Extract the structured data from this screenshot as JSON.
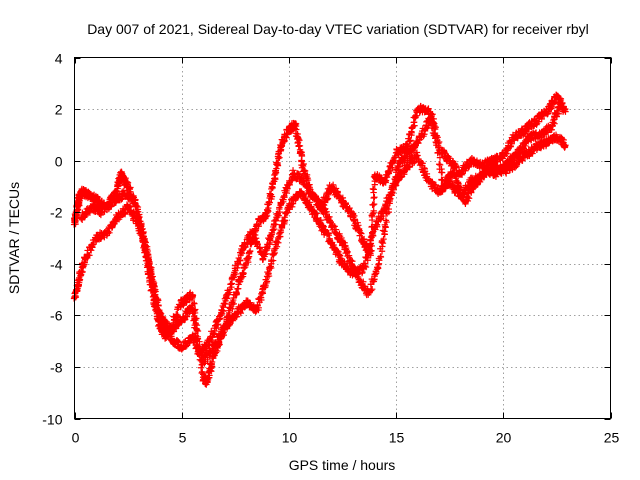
{
  "chart_data": {
    "type": "scatter",
    "title": "Day 007 of 2021, Sidereal Day-to-day VTEC variation (SDTVAR) for receiver rbyl",
    "xlabel": "GPS time / hours",
    "ylabel": "SDTVAR / TECUs",
    "xlim": [
      0,
      25
    ],
    "ylim": [
      -10,
      4
    ],
    "xticks": [
      0,
      5,
      10,
      15,
      20,
      25
    ],
    "yticks": [
      -10,
      -8,
      -6,
      -4,
      -2,
      0,
      2,
      4
    ],
    "grid": true,
    "marker": "+",
    "marker_color": "#ff0000",
    "series": [
      {
        "x": [
          0.0,
          0.1,
          0.2,
          0.3,
          0.6,
          1.0,
          1.5,
          2.0,
          2.2,
          2.5,
          3.0,
          3.3,
          3.6,
          3.9,
          4.2,
          4.5,
          5.0,
          5.5,
          6.0,
          6.2,
          6.5,
          7.0,
          7.5,
          8.0,
          8.5,
          9.0,
          9.3,
          9.6,
          10.0,
          10.3,
          10.6,
          11.0,
          11.5,
          12.0,
          12.5,
          13.0,
          13.5,
          13.8,
          14.0,
          14.5,
          15.0,
          15.5,
          16.0,
          16.5,
          17.0,
          17.5,
          18.0,
          18.5,
          19.0,
          19.5,
          20.0,
          20.5,
          21.0,
          21.5,
          22.0,
          22.5,
          22.9
        ],
        "y": [
          -2.4,
          -2.0,
          -1.5,
          -1.2,
          -1.3,
          -1.5,
          -1.8,
          -1.0,
          -0.5,
          -1.0,
          -2.2,
          -3.5,
          -5.0,
          -6.2,
          -6.8,
          -6.5,
          -5.5,
          -5.2,
          -8.4,
          -8.6,
          -7.5,
          -6.5,
          -5.2,
          -4.0,
          -2.5,
          -2.0,
          -0.8,
          0.5,
          1.2,
          1.4,
          0.0,
          -1.2,
          -1.8,
          -1.0,
          -1.6,
          -2.2,
          -3.2,
          -3.6,
          -0.6,
          -0.8,
          0.3,
          0.5,
          2.0,
          2.0,
          0.5,
          0.0,
          -0.5,
          0.0,
          -0.2,
          0.0,
          0.2,
          0.9,
          1.2,
          1.5,
          1.9,
          2.5,
          1.9
        ]
      },
      {
        "x": [
          0.0,
          0.2,
          0.5,
          1.0,
          1.5,
          2.0,
          2.5,
          3.0,
          3.5,
          3.8,
          4.2,
          4.6,
          5.0,
          5.5,
          6.0,
          6.5,
          7.0,
          7.5,
          8.0,
          8.5,
          9.0,
          9.5,
          10.0,
          10.5,
          11.0,
          11.5,
          12.0,
          12.5,
          13.0,
          13.5,
          14.0,
          14.5,
          15.0,
          15.5,
          16.0,
          16.5,
          17.0,
          17.5,
          18.0,
          18.5,
          19.0,
          19.5,
          20.0,
          20.5,
          21.0,
          21.5,
          22.0,
          22.5,
          22.9
        ],
        "y": [
          -5.3,
          -4.6,
          -3.8,
          -3.0,
          -2.8,
          -2.2,
          -1.8,
          -2.5,
          -4.0,
          -5.5,
          -6.5,
          -7.0,
          -7.2,
          -6.8,
          -7.8,
          -7.2,
          -6.5,
          -6.0,
          -5.5,
          -5.8,
          -4.5,
          -3.0,
          -1.8,
          -1.2,
          -1.8,
          -2.5,
          -3.2,
          -4.0,
          -4.4,
          -4.2,
          -2.6,
          -1.8,
          -0.8,
          -0.2,
          0.2,
          -0.8,
          -1.2,
          -0.8,
          -1.4,
          -0.8,
          -0.6,
          -0.2,
          -0.4,
          -0.2,
          0.2,
          0.5,
          0.7,
          0.9,
          0.6
        ]
      },
      {
        "x": [
          0.3,
          0.8,
          1.2,
          1.8,
          2.3,
          2.8,
          3.2,
          3.6,
          4.0,
          4.5,
          5.0,
          5.5,
          5.8,
          6.3,
          6.8,
          7.3,
          7.8,
          8.3,
          8.8,
          9.2,
          9.7,
          10.2,
          10.7,
          11.2,
          11.7,
          12.2,
          12.7,
          13.2,
          13.7,
          14.2,
          14.7,
          15.2,
          15.7,
          16.2,
          16.7,
          17.2,
          17.7,
          18.2,
          18.7,
          19.2,
          19.7,
          20.2,
          20.7,
          21.2,
          21.7,
          22.2,
          22.7
        ],
        "y": [
          -2.2,
          -1.8,
          -2.0,
          -1.6,
          -1.3,
          -1.5,
          -2.8,
          -4.5,
          -6.0,
          -6.6,
          -6.2,
          -5.6,
          -7.5,
          -7.0,
          -6.0,
          -4.8,
          -3.5,
          -2.8,
          -3.8,
          -2.8,
          -1.5,
          -0.5,
          -0.8,
          -1.5,
          -2.0,
          -2.8,
          -3.5,
          -4.5,
          -5.2,
          -4.0,
          -1.5,
          0.0,
          0.4,
          1.0,
          1.8,
          -1.0,
          -0.4,
          -1.6,
          -0.9,
          -0.4,
          -0.5,
          -0.1,
          0.3,
          0.9,
          1.0,
          1.3,
          2.2
        ]
      }
    ]
  }
}
